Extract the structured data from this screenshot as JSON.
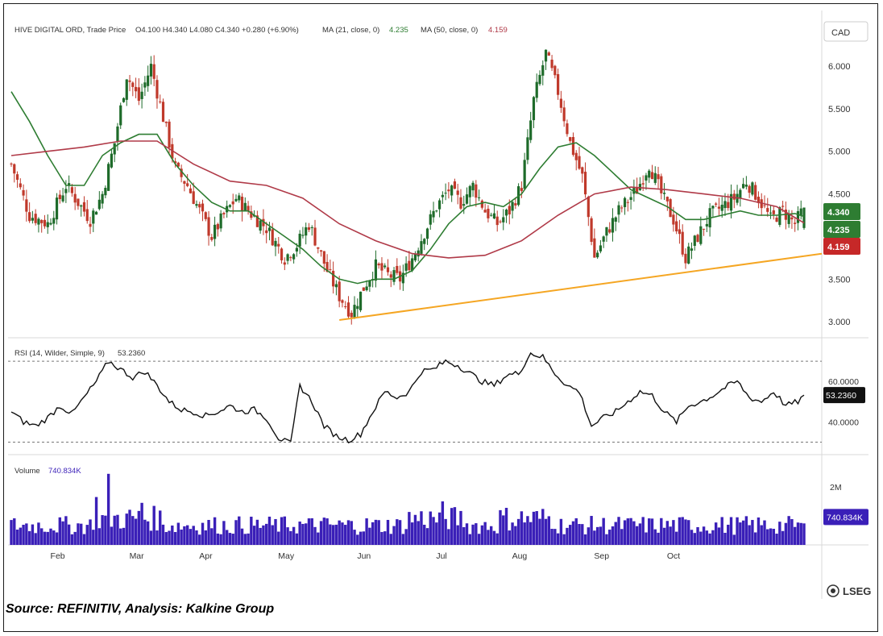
{
  "header": {
    "symbol": "HIVE DIGITAL ORD, Trade Price",
    "ohlc": "O4.100  H4.340  L4.080  C4.340  +0.280 (+6.90%)",
    "ma21_label": "MA (21, close, 0)",
    "ma21_value": "4.235",
    "ma50_label": "MA (50, close, 0)",
    "ma50_value": "4.159",
    "currency": "CAD"
  },
  "rsi": {
    "label": "RSI (14, Wilder, Simple, 9)",
    "value": "53.2360"
  },
  "volume": {
    "label": "Volume",
    "value": "740.834K"
  },
  "price_tags": {
    "close": "4.340",
    "ma21": "4.235",
    "ma50": "4.159"
  },
  "brand": "LSEG",
  "source_text": "Source: REFINITIV, Analysis: Kalkine Group",
  "colors": {
    "up": "#1e6b2a",
    "down": "#c0392b",
    "ma21": "#2e7d32",
    "ma50": "#b03a48",
    "trendline": "#f5a623",
    "rsi": "#111111",
    "volume": "#3a1fb8",
    "ma50_tag": "#c62828",
    "ma21_tag": "#2e7d32"
  },
  "chart_data": [
    {
      "type": "candlestick",
      "title": "HIVE DIGITAL ORD, Trade Price",
      "y_ticks": [
        "6.000",
        "5.500",
        "5.000",
        "4.500",
        "3.500",
        "3.000"
      ],
      "ylim": [
        2.85,
        6.35
      ],
      "months": [
        "Feb",
        "Mar",
        "Apr",
        "May",
        "Jun",
        "Jul",
        "Aug",
        "Sep",
        "Oct"
      ],
      "last_bar": {
        "open": 4.1,
        "high": 4.34,
        "low": 4.08,
        "close": 4.34
      },
      "close_path": [
        [
          0,
          4.85
        ],
        [
          6,
          4.25
        ],
        [
          12,
          4.15
        ],
        [
          18,
          4.6
        ],
        [
          26,
          4.2
        ],
        [
          30,
          4.5
        ],
        [
          34,
          5.1
        ],
        [
          38,
          5.9
        ],
        [
          42,
          5.6
        ],
        [
          46,
          6.0
        ],
        [
          50,
          5.4
        ],
        [
          54,
          4.8
        ],
        [
          58,
          4.6
        ],
        [
          62,
          4.3
        ],
        [
          66,
          4.0
        ],
        [
          70,
          4.25
        ],
        [
          74,
          4.45
        ],
        [
          78,
          4.3
        ],
        [
          84,
          4.1
        ],
        [
          90,
          3.75
        ],
        [
          94,
          3.9
        ],
        [
          98,
          4.15
        ],
        [
          104,
          3.6
        ],
        [
          108,
          3.3
        ],
        [
          112,
          3.1
        ],
        [
          116,
          3.4
        ],
        [
          120,
          3.65
        ],
        [
          124,
          3.55
        ],
        [
          128,
          3.5
        ],
        [
          132,
          3.75
        ],
        [
          136,
          4.05
        ],
        [
          140,
          4.35
        ],
        [
          144,
          4.55
        ],
        [
          148,
          4.4
        ],
        [
          152,
          4.6
        ],
        [
          156,
          4.3
        ],
        [
          160,
          4.15
        ],
        [
          164,
          4.3
        ],
        [
          168,
          4.6
        ],
        [
          172,
          5.6
        ],
        [
          176,
          6.15
        ],
        [
          180,
          5.7
        ],
        [
          184,
          5.1
        ],
        [
          188,
          4.7
        ],
        [
          192,
          3.75
        ],
        [
          196,
          4.05
        ],
        [
          200,
          4.3
        ],
        [
          206,
          4.55
        ],
        [
          210,
          4.85
        ],
        [
          214,
          4.5
        ],
        [
          218,
          4.2
        ],
        [
          222,
          3.75
        ],
        [
          226,
          4.0
        ],
        [
          230,
          4.25
        ],
        [
          234,
          4.35
        ],
        [
          238,
          4.45
        ],
        [
          242,
          4.65
        ],
        [
          246,
          4.45
        ],
        [
          250,
          4.2
        ],
        [
          254,
          4.3
        ],
        [
          258,
          4.15
        ],
        [
          261,
          4.34
        ]
      ],
      "series": [
        {
          "name": "MA (21, close, 0)",
          "points": [
            [
              0,
              5.7
            ],
            [
              6,
              5.35
            ],
            [
              12,
              4.95
            ],
            [
              18,
              4.6
            ],
            [
              24,
              4.6
            ],
            [
              30,
              4.95
            ],
            [
              36,
              5.1
            ],
            [
              42,
              5.2
            ],
            [
              48,
              5.2
            ],
            [
              54,
              4.85
            ],
            [
              60,
              4.6
            ],
            [
              66,
              4.4
            ],
            [
              72,
              4.3
            ],
            [
              78,
              4.3
            ],
            [
              84,
              4.15
            ],
            [
              90,
              4.0
            ],
            [
              96,
              3.85
            ],
            [
              102,
              3.65
            ],
            [
              108,
              3.5
            ],
            [
              114,
              3.45
            ],
            [
              120,
              3.5
            ],
            [
              126,
              3.5
            ],
            [
              132,
              3.6
            ],
            [
              138,
              3.85
            ],
            [
              144,
              4.15
            ],
            [
              150,
              4.35
            ],
            [
              156,
              4.4
            ],
            [
              162,
              4.35
            ],
            [
              168,
              4.5
            ],
            [
              174,
              4.8
            ],
            [
              180,
              5.05
            ],
            [
              186,
              5.1
            ],
            [
              192,
              4.95
            ],
            [
              198,
              4.75
            ],
            [
              204,
              4.55
            ],
            [
              210,
              4.45
            ],
            [
              216,
              4.35
            ],
            [
              222,
              4.2
            ],
            [
              228,
              4.2
            ],
            [
              234,
              4.25
            ],
            [
              240,
              4.3
            ],
            [
              246,
              4.25
            ],
            [
              252,
              4.25
            ],
            [
              258,
              4.27
            ],
            [
              261,
              4.235
            ]
          ]
        },
        {
          "name": "MA (50, close, 0)",
          "points": [
            [
              0,
              4.95
            ],
            [
              12,
              5.0
            ],
            [
              24,
              5.05
            ],
            [
              36,
              5.12
            ],
            [
              48,
              5.12
            ],
            [
              60,
              4.85
            ],
            [
              72,
              4.65
            ],
            [
              84,
              4.6
            ],
            [
              96,
              4.45
            ],
            [
              108,
              4.15
            ],
            [
              120,
              3.95
            ],
            [
              132,
              3.8
            ],
            [
              144,
              3.75
            ],
            [
              156,
              3.78
            ],
            [
              168,
              3.95
            ],
            [
              180,
              4.25
            ],
            [
              192,
              4.5
            ],
            [
              204,
              4.58
            ],
            [
              216,
              4.55
            ],
            [
              228,
              4.5
            ],
            [
              240,
              4.45
            ],
            [
              252,
              4.35
            ],
            [
              261,
              4.159
            ]
          ]
        },
        {
          "name": "",
          "points": [
            [
              108,
              3.02
            ],
            [
              261,
              3.77
            ]
          ]
        }
      ]
    },
    {
      "type": "line",
      "title": "RSI (14, Wilder, Simple, 9)",
      "y_ticks": [
        "60.0000",
        "40.0000"
      ],
      "ylim": [
        25,
        80
      ],
      "reference_lines": [
        70,
        30
      ],
      "last_value": 53.236,
      "series": [
        {
          "name": "RSI (14, Wilder, Simple, 9)",
          "points": [
            [
              0,
              45
            ],
            [
              4,
              40
            ],
            [
              8,
              38
            ],
            [
              12,
              42
            ],
            [
              16,
              48
            ],
            [
              20,
              44
            ],
            [
              24,
              52
            ],
            [
              28,
              60
            ],
            [
              32,
              70
            ],
            [
              36,
              66
            ],
            [
              40,
              62
            ],
            [
              44,
              65
            ],
            [
              48,
              58
            ],
            [
              52,
              50
            ],
            [
              56,
              46
            ],
            [
              60,
              45
            ],
            [
              64,
              43
            ],
            [
              68,
              45
            ],
            [
              72,
              48
            ],
            [
              76,
              45
            ],
            [
              80,
              46
            ],
            [
              84,
              42
            ],
            [
              88,
              32
            ],
            [
              92,
              29
            ],
            [
              95,
              58
            ],
            [
              99,
              50
            ],
            [
              103,
              38
            ],
            [
              107,
              33
            ],
            [
              111,
              31
            ],
            [
              115,
              34
            ],
            [
              119,
              45
            ],
            [
              123,
              55
            ],
            [
              127,
              52
            ],
            [
              131,
              55
            ],
            [
              135,
              65
            ],
            [
              139,
              66
            ],
            [
              143,
              70
            ],
            [
              147,
              68
            ],
            [
              151,
              64
            ],
            [
              155,
              60
            ],
            [
              159,
              58
            ],
            [
              163,
              63
            ],
            [
              167,
              64
            ],
            [
              171,
              74
            ],
            [
              175,
              72
            ],
            [
              179,
              64
            ],
            [
              183,
              58
            ],
            [
              187,
              55
            ],
            [
              191,
              38
            ],
            [
              195,
              42
            ],
            [
              199,
              45
            ],
            [
              203,
              50
            ],
            [
              207,
              55
            ],
            [
              211,
              53
            ],
            [
              215,
              45
            ],
            [
              219,
              40
            ],
            [
              223,
              48
            ],
            [
              227,
              50
            ],
            [
              231,
              53
            ],
            [
              235,
              57
            ],
            [
              239,
              60
            ],
            [
              243,
              52
            ],
            [
              247,
              50
            ],
            [
              251,
              55
            ],
            [
              255,
              48
            ],
            [
              259,
              50
            ],
            [
              261,
              53.236
            ]
          ]
        }
      ]
    },
    {
      "type": "bar",
      "title": "Volume",
      "y_ticks": [
        "2M"
      ],
      "ylim": [
        0,
        3000000
      ],
      "last_value": 740834,
      "peaks": [
        {
          "x": 32,
          "value": 2450000
        },
        {
          "x": 28,
          "value": 1650000
        },
        {
          "x": 43,
          "value": 1450000
        },
        {
          "x": 142,
          "value": 1500000
        }
      ]
    }
  ]
}
